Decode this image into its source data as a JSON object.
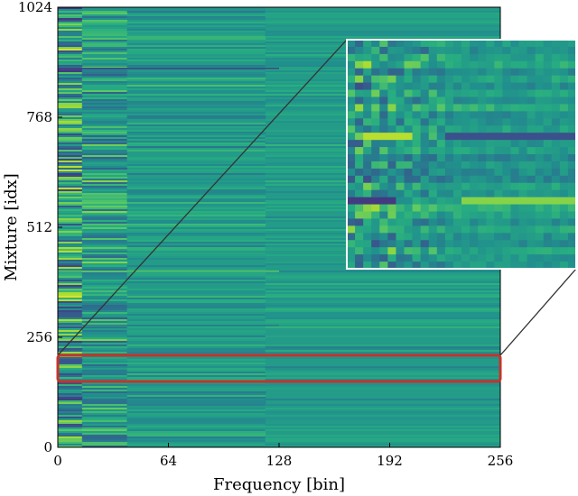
{
  "chart_data": {
    "type": "heatmap",
    "title": "",
    "xlabel": "Frequency [bin]",
    "ylabel": "Mixture [idx]",
    "xlim": [
      0,
      256
    ],
    "ylim": [
      0,
      1024
    ],
    "x_ticks": [
      "0",
      "64",
      "128",
      "192",
      "256"
    ],
    "y_ticks": [
      "0",
      "256",
      "512",
      "768",
      "1024"
    ],
    "colormap": "viridis",
    "highlight_region": {
      "x_range": [
        0,
        256
      ],
      "y_range": [
        150,
        212
      ],
      "color": "#c4342c"
    },
    "inset": "zoom of highlighted region",
    "grid": false,
    "legend": "none"
  },
  "colors": {
    "base": "#2a9a84",
    "highlight": "#c4342c",
    "connector": "#333333"
  }
}
